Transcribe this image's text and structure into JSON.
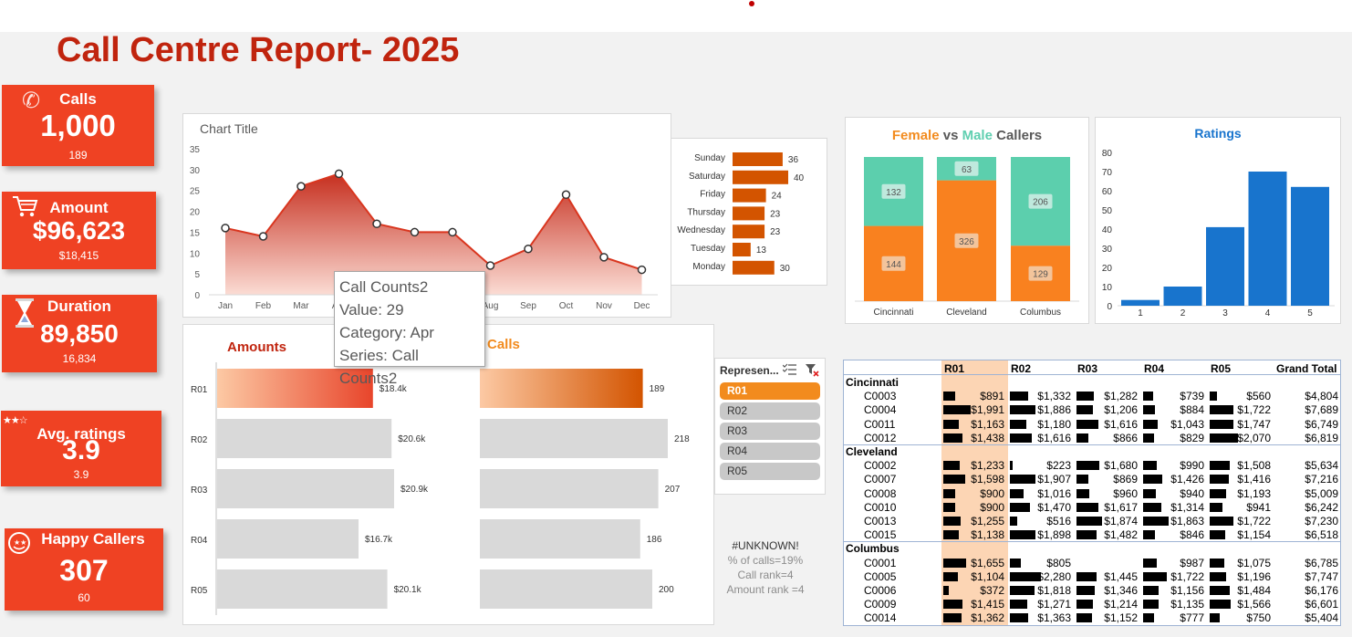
{
  "title": "Call Centre Report- 2025",
  "kpis": [
    {
      "label": "Calls",
      "value": "1,000",
      "sub": "189",
      "icon": "phone-icon"
    },
    {
      "label": "Amount",
      "value": "$96,623",
      "sub": "$18,415",
      "icon": "cart-icon"
    },
    {
      "label": "Duration",
      "value": "89,850",
      "sub": "16,834",
      "icon": "hourglass-icon"
    },
    {
      "label": "Avg. ratings",
      "value": "3.9",
      "sub": "3.9",
      "icon": "stars-icon"
    },
    {
      "label": "Happy Callers",
      "value": "307",
      "sub": "60",
      "icon": "smiley-icon"
    }
  ],
  "colors": {
    "kpi": "#ef4223",
    "title": "#c0240e",
    "orange": "#f28b1e",
    "teal": "#5fcfb0",
    "blue": "#1874cd"
  },
  "tooltip": {
    "line1": "Call Counts2",
    "line2": "Value: 29",
    "line3": "Category: Apr",
    "line4": "Series: Call Counts2"
  },
  "slicer": {
    "header": "Represen...",
    "items": [
      "R01",
      "R02",
      "R03",
      "R04",
      "R05"
    ],
    "selected": "R01"
  },
  "info": {
    "unknown": "#UNKNOWN!",
    "pct": "% of calls=19%",
    "call_rank": "Call rank=4",
    "amount_rank": "Amount rank =4"
  },
  "chart_data": [
    {
      "type": "area",
      "title": "Chart Title",
      "categories": [
        "Jan",
        "Feb",
        "Mar",
        "Apr",
        "May",
        "Jun",
        "Jul",
        "Aug",
        "Sep",
        "Oct",
        "Nov",
        "Dec"
      ],
      "series": [
        {
          "name": "Call Counts2",
          "values": [
            16,
            14,
            26,
            29,
            17,
            15,
            15,
            7,
            11,
            24,
            9,
            6
          ]
        }
      ],
      "ylim": [
        0,
        35
      ],
      "yticks": [
        "0",
        "5",
        "10",
        "15",
        "20",
        "25",
        "30",
        "35"
      ],
      "grid": false
    },
    {
      "type": "bar",
      "orientation": "horizontal",
      "categories": [
        "Sunday",
        "Saturday",
        "Friday",
        "Thursday",
        "Wednesday",
        "Tuesday",
        "Monday"
      ],
      "values": [
        36,
        40,
        24,
        23,
        23,
        13,
        30
      ]
    },
    {
      "type": "bar",
      "stacked": true,
      "title_parts": [
        "Female",
        "vs",
        "Male",
        "Callers"
      ],
      "categories": [
        "Cincinnati",
        "Cleveland",
        "Columbus"
      ],
      "series": [
        {
          "values": [
            144,
            326,
            129
          ]
        },
        {
          "values": [
            132,
            63,
            206
          ]
        }
      ]
    },
    {
      "type": "bar",
      "title": "Ratings",
      "categories": [
        "1",
        "2",
        "3",
        "4",
        "5"
      ],
      "values": [
        3,
        10,
        41,
        70,
        62
      ],
      "ylim": [
        0,
        80
      ],
      "yticks": [
        "0",
        "10",
        "20",
        "30",
        "40",
        "50",
        "60",
        "70",
        "80"
      ]
    },
    {
      "type": "bar",
      "orientation": "horizontal",
      "title": "Amounts",
      "categories": [
        "R01",
        "R02",
        "R03",
        "R04",
        "R05"
      ],
      "values": [
        18.4,
        20.6,
        20.9,
        16.7,
        20.1
      ],
      "labels": [
        "$18.4k",
        "$20.6k",
        "$20.9k",
        "$16.7k",
        "$20.1k"
      ]
    },
    {
      "type": "bar",
      "orientation": "horizontal",
      "title": "Calls",
      "categories": [
        "R01",
        "R02",
        "R03",
        "R04",
        "R05"
      ],
      "values": [
        189,
        218,
        207,
        186,
        200
      ],
      "labels": [
        "189",
        "218",
        "207",
        "186",
        "200"
      ]
    }
  ],
  "pivot": {
    "headers": [
      "R01",
      "R02",
      "R03",
      "R04",
      "R05",
      "Grand Total"
    ],
    "groups": [
      {
        "name": "Cincinnati",
        "rows": [
          {
            "id": "C0003",
            "cells": [
              "$891",
              "$1,332",
              "$1,282",
              "$739",
              "$560",
              "$4,804"
            ]
          },
          {
            "id": "C0004",
            "cells": [
              "$1,991",
              "$1,886",
              "$1,206",
              "$884",
              "$1,722",
              "$7,689"
            ]
          },
          {
            "id": "C0011",
            "cells": [
              "$1,163",
              "$1,180",
              "$1,616",
              "$1,043",
              "$1,747",
              "$6,749"
            ]
          },
          {
            "id": "C0012",
            "cells": [
              "$1,438",
              "$1,616",
              "$866",
              "$829",
              "$2,070",
              "$6,819"
            ]
          }
        ]
      },
      {
        "name": "Cleveland",
        "rows": [
          {
            "id": "C0002",
            "cells": [
              "$1,233",
              "$223",
              "$1,680",
              "$990",
              "$1,508",
              "$5,634"
            ]
          },
          {
            "id": "C0007",
            "cells": [
              "$1,598",
              "$1,907",
              "$869",
              "$1,426",
              "$1,416",
              "$7,216"
            ]
          },
          {
            "id": "C0008",
            "cells": [
              "$900",
              "$1,016",
              "$960",
              "$940",
              "$1,193",
              "$5,009"
            ]
          },
          {
            "id": "C0010",
            "cells": [
              "$900",
              "$1,470",
              "$1,617",
              "$1,314",
              "$941",
              "$6,242"
            ]
          },
          {
            "id": "C0013",
            "cells": [
              "$1,255",
              "$516",
              "$1,874",
              "$1,863",
              "$1,722",
              "$7,230"
            ]
          },
          {
            "id": "C0015",
            "cells": [
              "$1,138",
              "$1,898",
              "$1,482",
              "$846",
              "$1,154",
              "$6,518"
            ]
          }
        ]
      },
      {
        "name": "Columbus",
        "rows": [
          {
            "id": "C0001",
            "cells": [
              "$1,655",
              "$805",
              "",
              "$987",
              "$1,075",
              "$6,785"
            ]
          },
          {
            "id": "C0005",
            "cells": [
              "$1,104",
              "$2,280",
              "$1,445",
              "$1,722",
              "$1,196",
              "$7,747"
            ]
          },
          {
            "id": "C0006",
            "cells": [
              "$372",
              "$1,818",
              "$1,346",
              "$1,156",
              "$1,484",
              "$6,176"
            ]
          },
          {
            "id": "C0009",
            "cells": [
              "$1,415",
              "$1,271",
              "$1,214",
              "$1,135",
              "$1,566",
              "$6,601"
            ]
          },
          {
            "id": "C0014",
            "cells": [
              "$1,362",
              "$1,363",
              "$1,152",
              "$777",
              "$750",
              "$5,404"
            ]
          }
        ]
      }
    ]
  }
}
